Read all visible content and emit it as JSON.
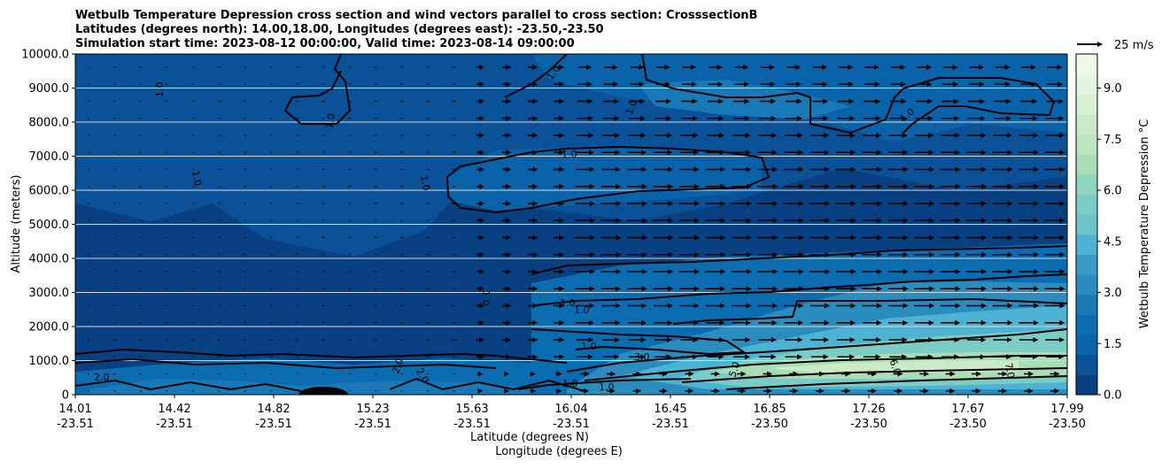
{
  "chart_data": {
    "type": "contour",
    "title_lines": [
      "Wetbulb Temperature Depression cross section and wind vectors parallel to cross section: CrosssectionB",
      "Latitudes (degrees north): 14.00,18.00, Longitudes (degrees east): -23.50,-23.50",
      "Simulation start time: 2023-08-12 00:00:00, Valid time: 2023-08-14 09:00:00"
    ],
    "ylabel": "Altitude (meters)",
    "xlabel_lat": "Latitude (degrees N)",
    "xlabel_lon": "Longitude (degrees E)",
    "ylim": [
      0,
      10000
    ],
    "yticks": [
      "0",
      "1000.0",
      "2000.0",
      "3000.0",
      "4000.0",
      "5000.0",
      "6000.0",
      "7000.0",
      "8000.0",
      "9000.0",
      "10000.0"
    ],
    "xticks": [
      {
        "lat": "14.01",
        "lon": "-23.51"
      },
      {
        "lat": "14.42",
        "lon": "-23.51"
      },
      {
        "lat": "14.82",
        "lon": "-23.51"
      },
      {
        "lat": "15.23",
        "lon": "-23.51"
      },
      {
        "lat": "15.63",
        "lon": "-23.51"
      },
      {
        "lat": "16.04",
        "lon": "-23.51"
      },
      {
        "lat": "16.45",
        "lon": "-23.51"
      },
      {
        "lat": "16.85",
        "lon": "-23.50"
      },
      {
        "lat": "17.26",
        "lon": "-23.50"
      },
      {
        "lat": "17.67",
        "lon": "-23.50"
      },
      {
        "lat": "17.99",
        "lon": "-23.50"
      }
    ],
    "colorbar": {
      "label": "Wetbulb Temperature Depression °C",
      "range": [
        0,
        10
      ],
      "ticks": [
        "0.0",
        "1.5",
        "3.0",
        "4.5",
        "6.0",
        "7.5",
        "9.0"
      ],
      "colors": [
        "#084081",
        "#0b5197",
        "#0a62a8",
        "#0b6cb0",
        "#1979b6",
        "#2b8cbe",
        "#3a9bc6",
        "#4eb3d3",
        "#6dc4c9",
        "#7bccc4",
        "#8fd5be",
        "#a8ddb5",
        "#bde5c0",
        "#ccebc5",
        "#d9f0d3",
        "#e6f5e1",
        "#f0f9e8"
      ]
    },
    "vector_key": "25 m/s",
    "contour_labels": [
      "1.0",
      "2.0",
      "3.0",
      "5.0",
      "6.0",
      "7.0"
    ],
    "grid": true
  }
}
